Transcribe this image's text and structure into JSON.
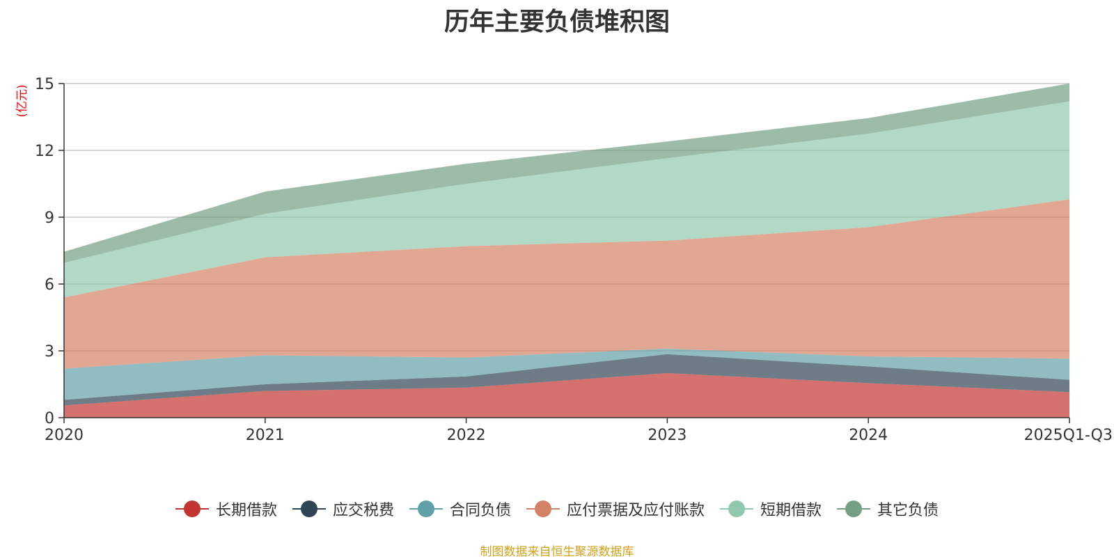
{
  "chart_data": {
    "type": "area",
    "stacked": true,
    "title": "历年主要负债堆积图",
    "ylabel": "(亿元)",
    "xlabel": "",
    "categories": [
      "2020",
      "2021",
      "2022",
      "2023",
      "2024",
      "2025Q1-Q3"
    ],
    "ylim": [
      0,
      15
    ],
    "yticks": [
      0,
      3,
      6,
      9,
      12,
      15
    ],
    "grid": true,
    "legend_position": "bottom",
    "series": [
      {
        "name": "长期借款",
        "color": "#c23531",
        "values": [
          0.55,
          1.2,
          1.35,
          2.0,
          1.55,
          1.15
        ]
      },
      {
        "name": "应交税费",
        "color": "#2f4554",
        "values": [
          0.25,
          0.3,
          0.5,
          0.85,
          0.75,
          0.55
        ]
      },
      {
        "name": "合同负债",
        "color": "#61a0a8",
        "values": [
          1.4,
          1.3,
          0.85,
          0.25,
          0.45,
          0.95
        ]
      },
      {
        "name": "应付票据及应付账款",
        "color": "#d48265",
        "values": [
          3.2,
          4.4,
          5.0,
          4.85,
          5.8,
          7.15
        ]
      },
      {
        "name": "短期借款",
        "color": "#91c7ae",
        "values": [
          1.55,
          1.95,
          2.8,
          3.7,
          4.2,
          4.4
        ]
      },
      {
        "name": "其它负债",
        "color": "#749f83",
        "values": [
          0.5,
          1.0,
          0.9,
          0.75,
          0.7,
          0.8
        ]
      }
    ]
  },
  "source_note": "制图数据来自恒生聚源数据库"
}
